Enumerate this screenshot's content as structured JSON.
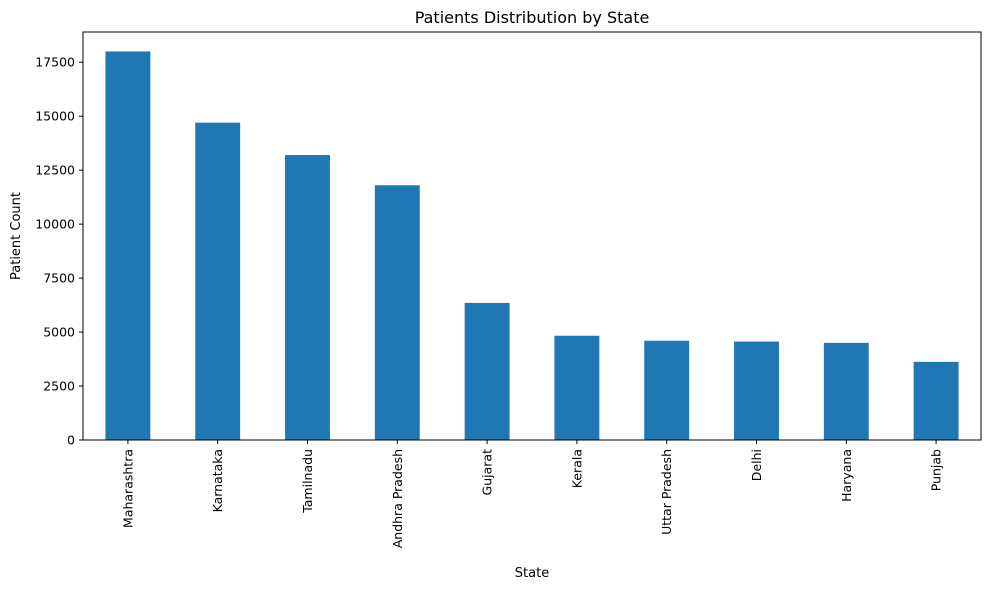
{
  "chart_data": {
    "type": "bar",
    "title": "Patients Distribution by State",
    "xlabel": "State",
    "ylabel": "Patient Count",
    "categories": [
      "Maharashtra",
      "Karnataka",
      "Tamilnadu",
      "Andhra Pradesh",
      "Gujarat",
      "Kerala",
      "Uttar Pradesh",
      "Delhi",
      "Haryana",
      "Punjab"
    ],
    "values": [
      18000,
      14700,
      13200,
      11800,
      6350,
      4830,
      4600,
      4560,
      4500,
      3620
    ],
    "ylim": [
      0,
      18900
    ],
    "yticks": [
      0,
      2500,
      5000,
      7500,
      10000,
      12500,
      15000,
      17500
    ],
    "ytick_labels": [
      "0",
      "2500",
      "5000",
      "7500",
      "10000",
      "12500",
      "15000",
      "17500"
    ],
    "bar_color": "#1f77b4",
    "grid": false,
    "legend": "none"
  }
}
